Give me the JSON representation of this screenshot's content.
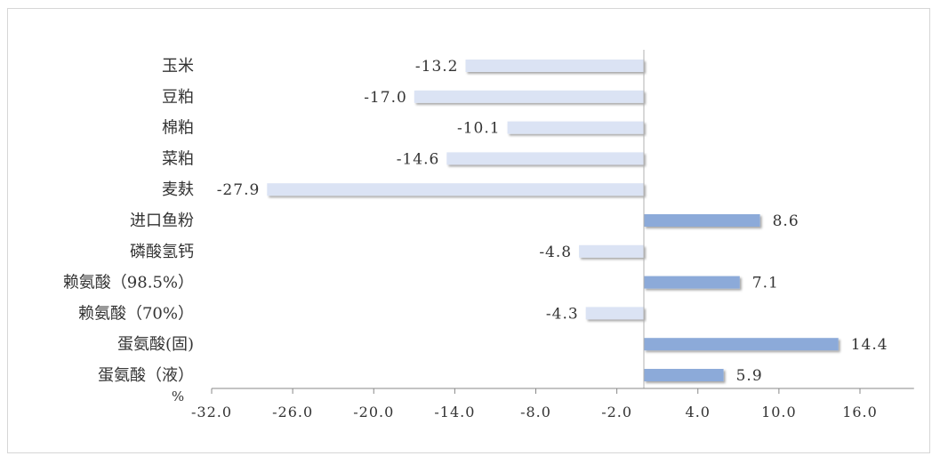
{
  "chart_data": {
    "type": "bar",
    "orientation": "horizontal",
    "categories": [
      "玉米",
      "豆粕",
      "棉粕",
      "菜粕",
      "麦麸",
      "进口鱼粉",
      "磷酸氢钙",
      "赖氨酸（98.5%）",
      "赖氨酸（70%）",
      "蛋氨酸(固)",
      "蛋氨酸（液）"
    ],
    "values": [
      -13.2,
      -17.0,
      -10.1,
      -14.6,
      -27.9,
      8.6,
      -4.8,
      7.1,
      -4.3,
      14.4,
      5.9
    ],
    "value_labels": [
      "-13.2",
      "-17.0",
      "-10.1",
      "-14.6",
      "-27.9",
      "8.6",
      "-4.8",
      "7.1",
      "-4.3",
      "14.4",
      "5.9"
    ],
    "unit_label": "%",
    "xlim": [
      -32.0,
      20.0
    ],
    "x_ticks": [
      -32.0,
      -26.0,
      -20.0,
      -14.0,
      -8.0,
      -2.0,
      4.0,
      10.0,
      16.0
    ],
    "x_tick_labels": [
      "-32.0",
      "-26.0",
      "-20.0",
      "-14.0",
      "-8.0",
      "-2.0",
      "4.0",
      "10.0",
      "16.0"
    ],
    "title": "",
    "xlabel": "",
    "ylabel": "",
    "grid": false,
    "legend": "none",
    "colors": {
      "negative": "#dbe3f4",
      "positive": "#8caad9",
      "axis": "#888888",
      "text": "#333333"
    }
  }
}
